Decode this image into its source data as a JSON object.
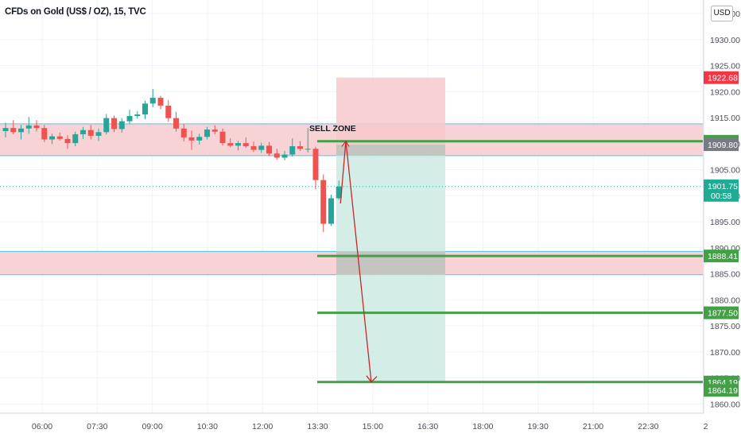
{
  "header": {
    "title": "CFDs on Gold (US$ / OZ), 15, TVC",
    "currency_button": "USD"
  },
  "chart_data": {
    "type": "candlestick",
    "symbol": "CFDs on Gold (US$ / OZ)",
    "interval": "15",
    "source": "TVC",
    "x_tick_labels": [
      "06:00",
      "07:30",
      "09:00",
      "10:30",
      "12:00",
      "13:30",
      "15:00",
      "16:30",
      "18:00",
      "19:30",
      "21:00",
      "22:30",
      "2"
    ],
    "y_tick_labels": [
      "1935.00",
      "1930.00",
      "1925.00",
      "1920.00",
      "1915.00",
      "1910.00",
      "1905.00",
      "1900.00",
      "1895.00",
      "1890.00",
      "1885.00",
      "1880.00",
      "1875.00",
      "1870.00",
      "1865.00",
      "1860.00"
    ],
    "ylim": [
      1860,
      1935
    ],
    "grid": true,
    "candles": [
      {
        "o": 1912.4,
        "h": 1914.0,
        "l": 1911.2,
        "c": 1913.0
      },
      {
        "o": 1913.0,
        "h": 1914.5,
        "l": 1911.8,
        "c": 1912.2
      },
      {
        "o": 1912.2,
        "h": 1913.6,
        "l": 1910.8,
        "c": 1912.9
      },
      {
        "o": 1912.9,
        "h": 1915.1,
        "l": 1911.9,
        "c": 1913.5
      },
      {
        "o": 1913.5,
        "h": 1914.5,
        "l": 1912.3,
        "c": 1913.0
      },
      {
        "o": 1913.0,
        "h": 1913.6,
        "l": 1910.3,
        "c": 1910.8
      },
      {
        "o": 1910.8,
        "h": 1911.9,
        "l": 1909.9,
        "c": 1911.4
      },
      {
        "o": 1911.4,
        "h": 1912.1,
        "l": 1910.6,
        "c": 1910.9
      },
      {
        "o": 1910.9,
        "h": 1911.6,
        "l": 1909.0,
        "c": 1910.1
      },
      {
        "o": 1910.1,
        "h": 1912.3,
        "l": 1909.5,
        "c": 1911.8
      },
      {
        "o": 1911.8,
        "h": 1913.2,
        "l": 1910.9,
        "c": 1912.6
      },
      {
        "o": 1912.6,
        "h": 1913.6,
        "l": 1910.8,
        "c": 1911.5
      },
      {
        "o": 1911.5,
        "h": 1912.9,
        "l": 1910.5,
        "c": 1912.2
      },
      {
        "o": 1912.2,
        "h": 1915.7,
        "l": 1911.8,
        "c": 1914.9
      },
      {
        "o": 1914.9,
        "h": 1915.4,
        "l": 1912.2,
        "c": 1912.8
      },
      {
        "o": 1912.8,
        "h": 1914.9,
        "l": 1912.1,
        "c": 1914.3
      },
      {
        "o": 1914.3,
        "h": 1916.5,
        "l": 1913.8,
        "c": 1915.3
      },
      {
        "o": 1915.3,
        "h": 1916.2,
        "l": 1914.8,
        "c": 1915.6
      },
      {
        "o": 1915.6,
        "h": 1918.2,
        "l": 1914.7,
        "c": 1917.7
      },
      {
        "o": 1917.7,
        "h": 1920.5,
        "l": 1917.0,
        "c": 1918.8
      },
      {
        "o": 1918.8,
        "h": 1919.2,
        "l": 1916.6,
        "c": 1917.3
      },
      {
        "o": 1917.3,
        "h": 1918.4,
        "l": 1914.2,
        "c": 1914.9
      },
      {
        "o": 1914.9,
        "h": 1916.1,
        "l": 1912.3,
        "c": 1912.9
      },
      {
        "o": 1912.9,
        "h": 1913.8,
        "l": 1910.4,
        "c": 1911.2
      },
      {
        "o": 1911.2,
        "h": 1912.5,
        "l": 1908.8,
        "c": 1910.6
      },
      {
        "o": 1910.6,
        "h": 1911.9,
        "l": 1909.8,
        "c": 1911.3
      },
      {
        "o": 1911.3,
        "h": 1913.2,
        "l": 1910.8,
        "c": 1912.7
      },
      {
        "o": 1912.7,
        "h": 1913.5,
        "l": 1911.8,
        "c": 1912.3
      },
      {
        "o": 1912.3,
        "h": 1912.9,
        "l": 1909.6,
        "c": 1910.1
      },
      {
        "o": 1910.1,
        "h": 1911.0,
        "l": 1909.3,
        "c": 1909.6
      },
      {
        "o": 1909.6,
        "h": 1910.5,
        "l": 1908.7,
        "c": 1910.1
      },
      {
        "o": 1910.1,
        "h": 1911.2,
        "l": 1909.2,
        "c": 1909.5
      },
      {
        "o": 1909.5,
        "h": 1910.4,
        "l": 1908.4,
        "c": 1908.8
      },
      {
        "o": 1908.8,
        "h": 1910.2,
        "l": 1908.2,
        "c": 1909.6
      },
      {
        "o": 1909.6,
        "h": 1910.3,
        "l": 1907.6,
        "c": 1908.1
      },
      {
        "o": 1908.1,
        "h": 1909.0,
        "l": 1906.9,
        "c": 1907.3
      },
      {
        "o": 1907.3,
        "h": 1908.6,
        "l": 1906.8,
        "c": 1907.9
      },
      {
        "o": 1907.9,
        "h": 1911.0,
        "l": 1907.5,
        "c": 1909.5
      },
      {
        "o": 1909.5,
        "h": 1910.5,
        "l": 1908.6,
        "c": 1909.0
      },
      {
        "o": 1909.0,
        "h": 1913.0,
        "l": 1908.3,
        "c": 1909.0
      },
      {
        "o": 1909.0,
        "h": 1909.4,
        "l": 1901.2,
        "c": 1903.0
      },
      {
        "o": 1903.0,
        "h": 1904.1,
        "l": 1893.0,
        "c": 1894.6
      },
      {
        "o": 1894.6,
        "h": 1900.2,
        "l": 1894.2,
        "c": 1899.5
      },
      {
        "o": 1899.5,
        "h": 1902.9,
        "l": 1899.2,
        "c": 1901.75
      }
    ],
    "zones": [
      {
        "label": "SELL ZONE",
        "top": 1913.8,
        "bottom": 1907.7
      },
      {
        "label": "",
        "top": 1889.3,
        "bottom": 1884.8
      }
    ],
    "position": {
      "entry": 1909.8,
      "stop": 1922.68,
      "target": 1864.19
    },
    "levels": [
      1910.45,
      1888.41,
      1877.5,
      1864.19
    ],
    "current_price": 1901.75,
    "price_labels": [
      {
        "value": "1922.68",
        "price": 1922.68,
        "color": "#f23645"
      },
      {
        "value": "1910.45",
        "price": 1910.45,
        "color": "#43a047"
      },
      {
        "value": "1909.80",
        "price": 1909.8,
        "color": "#787b86"
      },
      {
        "value": "1901.75",
        "sub": "00:58",
        "price": 1901.75,
        "color": "#22ab94"
      },
      {
        "value": "1888.41",
        "price": 1888.41,
        "color": "#43a047"
      },
      {
        "value": "1877.50",
        "price": 1877.5,
        "color": "#43a047"
      },
      {
        "value": "1864.19",
        "price": 1864.19,
        "color": "#43a047"
      },
      {
        "value": "1864.19",
        "price": 1862.6,
        "color": "#43a047"
      }
    ],
    "colors": {
      "up": "#26a69a",
      "down": "#ef5350",
      "zone_fill": "#f8d3d6",
      "zone_border": "#4fc3f7",
      "level_line": "#43a047",
      "stop_fill": "#f7c9cc",
      "target_fill": "#cdeae3",
      "arrow": "#c62828"
    }
  }
}
